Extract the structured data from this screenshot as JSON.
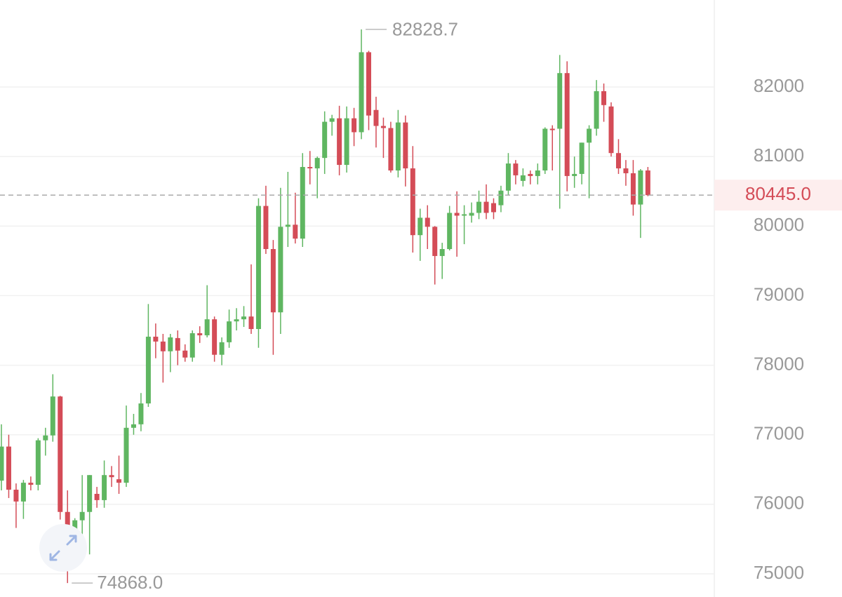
{
  "chart_data": {
    "type": "candlestick",
    "open": [
      76340,
      76830,
      76210,
      76040,
      76310,
      76280,
      76920,
      76990,
      77550,
      75890,
      75490,
      75770,
      75890,
      76150,
      76060,
      76420,
      76360,
      76310,
      77100,
      77150,
      77450,
      78410,
      78340,
      78200,
      78390,
      78210,
      78110,
      78460,
      78430,
      78660,
      78150,
      78330,
      78630,
      78660,
      78700,
      78520,
      80290,
      79670,
      78760,
      79990,
      80020,
      79820,
      80850,
      80830,
      80980,
      81500,
      81550,
      80880,
      81550,
      81350,
      82500,
      81670,
      81440,
      81410,
      80800,
      81490,
      80830,
      79870,
      80120,
      79990,
      79570,
      79670,
      80190,
      80150,
      80150,
      80190,
      80350,
      80330,
      80300,
      80510,
      80900,
      80650,
      80750,
      80720,
      80800,
      81400,
      81400,
      82200,
      80720,
      80750,
      81200,
      81400,
      81940,
      81720,
      81050,
      80830,
      80760,
      80310,
      80800
    ],
    "high": [
      77150,
      77000,
      76300,
      76350,
      76400,
      76950,
      77100,
      77870,
      77560,
      76200,
      75800,
      76420,
      76420,
      76250,
      76630,
      76550,
      76700,
      77420,
      77300,
      77600,
      78880,
      78600,
      78450,
      78450,
      78500,
      78300,
      78500,
      78560,
      79150,
      78700,
      78400,
      78800,
      78820,
      78850,
      79450,
      80400,
      80580,
      79800,
      80550,
      80780,
      80480,
      81050,
      81080,
      81000,
      81650,
      81600,
      81730,
      81720,
      81700,
      82828.7,
      82520,
      81860,
      81560,
      81500,
      81670,
      81590,
      81150,
      80250,
      80300,
      80000,
      79760,
      80290,
      80500,
      80300,
      80340,
      80510,
      80600,
      80400,
      80580,
      81050,
      80950,
      80830,
      80800,
      80900,
      81420,
      81450,
      82460,
      82370,
      81000,
      81200,
      81450,
      82100,
      82050,
      81780,
      81250,
      80950,
      80950,
      80820,
      80850
    ],
    "low": [
      76200,
      76090,
      75660,
      75790,
      76200,
      76200,
      76700,
      76900,
      75780,
      74868,
      75250,
      75400,
      75280,
      75950,
      75950,
      76250,
      76150,
      76250,
      77000,
      77050,
      77400,
      78100,
      77750,
      77900,
      78000,
      78050,
      78050,
      78320,
      78400,
      78050,
      78000,
      78250,
      78500,
      78550,
      78450,
      78250,
      79600,
      78150,
      78450,
      79700,
      79750,
      79700,
      80600,
      80400,
      80750,
      81300,
      80730,
      80770,
      81150,
      81250,
      81380,
      81130,
      80980,
      80770,
      80700,
      80570,
      79620,
      79500,
      79670,
      79160,
      79240,
      79650,
      79560,
      79740,
      80050,
      80100,
      80100,
      80100,
      80200,
      80450,
      80600,
      80570,
      80600,
      80600,
      80750,
      80800,
      80250,
      80500,
      80550,
      80600,
      80400,
      81300,
      81500,
      81000,
      80750,
      80580,
      80150,
      79830,
      80430
    ],
    "close": [
      76830,
      76210,
      76040,
      76310,
      76280,
      76920,
      76990,
      77550,
      75890,
      75490,
      75770,
      75890,
      76420,
      76060,
      76420,
      76390,
      76310,
      77100,
      77150,
      77450,
      78410,
      78340,
      78200,
      78400,
      78210,
      78110,
      78460,
      78430,
      78660,
      78150,
      78330,
      78630,
      78660,
      78700,
      78520,
      80290,
      79670,
      78760,
      79990,
      80020,
      79820,
      80850,
      80830,
      80980,
      81500,
      81550,
      80880,
      81550,
      81350,
      82500,
      81590,
      81440,
      81410,
      80800,
      81490,
      80830,
      79870,
      80120,
      79990,
      79570,
      79670,
      80190,
      80150,
      80170,
      80190,
      80350,
      80190,
      80200,
      80510,
      80900,
      80730,
      80730,
      80720,
      80800,
      81400,
      81380,
      82200,
      80720,
      80750,
      81200,
      81400,
      81940,
      81740,
      81050,
      80830,
      80760,
      80310,
      80800,
      80445
    ],
    "up_color": "#5fb661",
    "down_color": "#d44c57",
    "ylim": [
      74667,
      83251
    ],
    "yticks": [
      75000,
      76000,
      77000,
      78000,
      79000,
      80000,
      81000,
      82000
    ],
    "grid": true,
    "high_marker": 82828.7,
    "low_marker": {
      "value": 74868,
      "label": "74868.0"
    },
    "last_price": {
      "value": 80445,
      "label": "80445.0"
    }
  }
}
